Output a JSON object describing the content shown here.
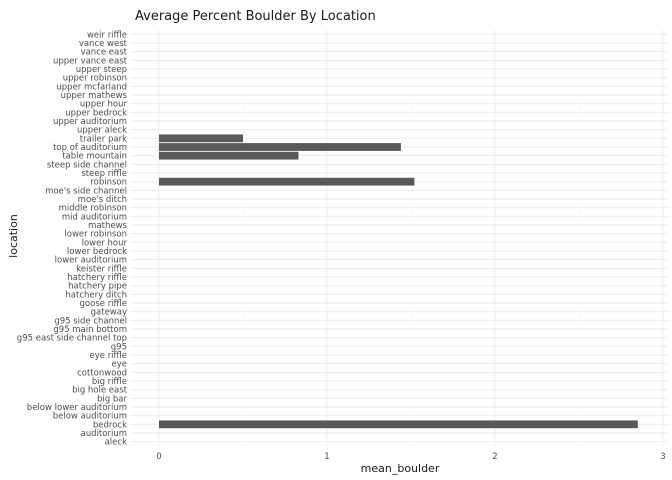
{
  "chart_data": {
    "type": "bar",
    "orientation": "horizontal",
    "title": "Average Percent Boulder By Location",
    "xlabel": "mean_boulder",
    "ylabel": "location",
    "xlim": [
      0,
      3
    ],
    "xticks": [
      0,
      1,
      2,
      3
    ],
    "grid": true,
    "bar_color": "#595959",
    "categories": [
      "aleck",
      "auditorium",
      "bedrock",
      "below auditorium",
      "below lower auditorium",
      "big bar",
      "big hole east",
      "big riffle",
      "cottonwood",
      "eye",
      "eye riffle",
      "g95",
      "g95 east side channel top",
      "g95 main bottom",
      "g95 side channel",
      "gateway",
      "goose riffle",
      "hatchery ditch",
      "hatchery pipe",
      "hatchery riffle",
      "keister riffle",
      "lower auditorium",
      "lower bedrock",
      "lower hour",
      "lower robinson",
      "mathews",
      "mid auditorium",
      "middle robinson",
      "moe's ditch",
      "moe's side channel",
      "robinson",
      "steep riffle",
      "steep side channel",
      "table mountain",
      "top of auditorium",
      "trailer park",
      "upper aleck",
      "upper auditorium",
      "upper bedrock",
      "upper hour",
      "upper mathews",
      "upper mcfarland",
      "upper robinson",
      "upper steep",
      "upper vance east",
      "vance east",
      "vance west",
      "weir riffle"
    ],
    "values": [
      0,
      0,
      2.85,
      0,
      0,
      0,
      0,
      0,
      0,
      0,
      0,
      0,
      0,
      0,
      0,
      0,
      0,
      0,
      0,
      0,
      0,
      0,
      0,
      0,
      0,
      0,
      0,
      0,
      0,
      0,
      1.52,
      0,
      0,
      0.83,
      1.44,
      0.5,
      0,
      0,
      0,
      0,
      0,
      0,
      0,
      0,
      0,
      0,
      0,
      0
    ]
  }
}
